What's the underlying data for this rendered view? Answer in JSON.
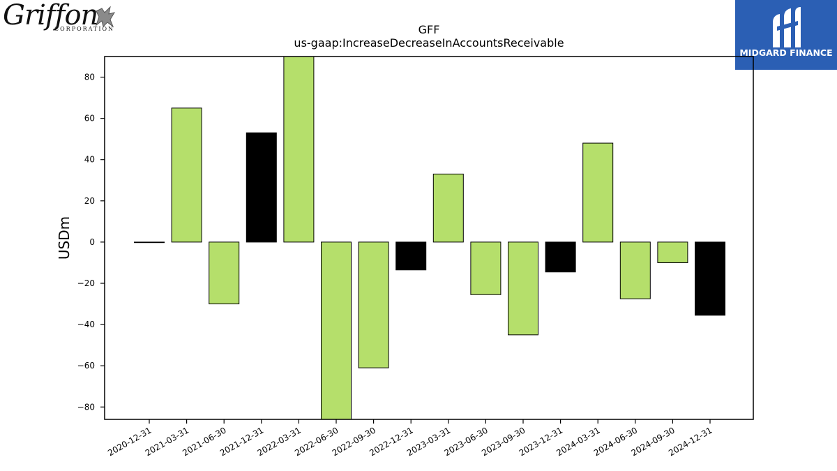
{
  "logos": {
    "left": {
      "wordmark": "Griffon",
      "subtext": "CORPORATION"
    },
    "right": {
      "name": "MIDGARD FINANCE",
      "color": "#2b5fb4"
    }
  },
  "chart_data": {
    "type": "bar",
    "title": "GFF",
    "subtitle": "us-gaap:IncreaseDecreaseInAccountsReceivable",
    "xlabel": "",
    "ylabel": "USDm",
    "ylim": [
      -86,
      90
    ],
    "yticks": [
      80,
      60,
      40,
      20,
      0,
      -20,
      -40,
      -60,
      -80
    ],
    "grid": false,
    "legend": "none",
    "colors": {
      "quarterly": "#b5df6b",
      "annual": "#000000"
    },
    "categories": [
      "2020-12-31",
      "2021-03-31",
      "2021-06-30",
      "2021-12-31",
      "2022-03-31",
      "2022-06-30",
      "2022-09-30",
      "2022-12-31",
      "2023-03-31",
      "2023-06-30",
      "2023-09-30",
      "2023-12-31",
      "2024-03-31",
      "2024-06-30",
      "2024-09-30",
      "2024-12-31"
    ],
    "values": [
      0,
      65,
      -30,
      53,
      90,
      -86,
      -61,
      -13.5,
      33,
      -25.5,
      -45,
      -14.5,
      48,
      -27.5,
      -10,
      -35.5
    ],
    "bar_colors": [
      "quarterly",
      "quarterly",
      "quarterly",
      "annual",
      "quarterly",
      "quarterly",
      "quarterly",
      "annual",
      "quarterly",
      "quarterly",
      "quarterly",
      "annual",
      "quarterly",
      "quarterly",
      "quarterly",
      "annual"
    ]
  }
}
